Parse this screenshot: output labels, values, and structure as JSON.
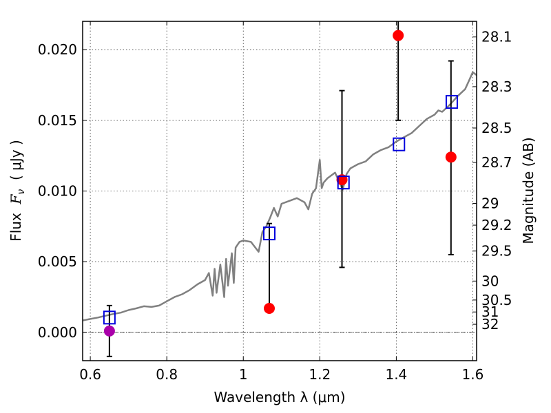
{
  "chart_data": {
    "type": "scatter",
    "xlabel": "Wavelength  λ (μm)",
    "ylabel": "Flux  F_ν  ( μJy )",
    "ylabel_parts": {
      "prefix": "Flux  ",
      "symbol": "F",
      "subscript": "ν",
      "unit": "  ( μJy )"
    },
    "ylabel_right": "Magnitude (AB)",
    "xlim": [
      0.58,
      1.61
    ],
    "ylim": [
      -0.002,
      0.022
    ],
    "grid": true,
    "x_ticks": [
      {
        "value": 0.6,
        "label": "0.6"
      },
      {
        "value": 0.8,
        "label": "0.8"
      },
      {
        "value": 1.0,
        "label": "1"
      },
      {
        "value": 1.2,
        "label": "1.2"
      },
      {
        "value": 1.4,
        "label": "1.4"
      },
      {
        "value": 1.6,
        "label": "1.6"
      }
    ],
    "y_ticks": [
      {
        "value": 0.0,
        "label": "0.000"
      },
      {
        "value": 0.005,
        "label": "0.005"
      },
      {
        "value": 0.01,
        "label": "0.010"
      },
      {
        "value": 0.015,
        "label": "0.015"
      },
      {
        "value": 0.02,
        "label": "0.020"
      }
    ],
    "right_ticks": [
      {
        "label": "28.1",
        "mag": 28.1
      },
      {
        "label": "28.3",
        "mag": 28.3
      },
      {
        "label": "28.5",
        "mag": 28.5
      },
      {
        "label": "28.7",
        "mag": 28.7
      },
      {
        "label": "29",
        "mag": 29.0
      },
      {
        "label": "29.2",
        "mag": 29.2
      },
      {
        "label": "29.5",
        "mag": 29.5
      },
      {
        "label": "30",
        "mag": 30.0
      },
      {
        "label": "30.5",
        "mag": 30.5
      },
      {
        "label": "31",
        "mag": 31.0
      },
      {
        "label": "32",
        "mag": 32.0
      }
    ],
    "series": [
      {
        "kind": "line",
        "color": "#808080",
        "x": [
          0.58,
          0.6,
          0.62,
          0.64,
          0.66,
          0.68,
          0.7,
          0.72,
          0.74,
          0.76,
          0.78,
          0.8,
          0.82,
          0.84,
          0.86,
          0.88,
          0.9,
          0.91,
          0.92,
          0.925,
          0.93,
          0.94,
          0.95,
          0.955,
          0.96,
          0.97,
          0.975,
          0.98,
          0.99,
          1.0,
          1.02,
          1.04,
          1.05,
          1.06,
          1.07,
          1.08,
          1.09,
          1.1,
          1.12,
          1.14,
          1.16,
          1.17,
          1.18,
          1.19,
          1.2,
          1.205,
          1.21,
          1.22,
          1.24,
          1.26,
          1.27,
          1.28,
          1.3,
          1.32,
          1.34,
          1.36,
          1.38,
          1.4,
          1.42,
          1.44,
          1.46,
          1.48,
          1.5,
          1.51,
          1.52,
          1.54,
          1.56,
          1.58,
          1.59,
          1.6,
          1.61
        ],
        "y": [
          0.00085,
          0.00095,
          0.00105,
          0.00118,
          0.0013,
          0.0014,
          0.00158,
          0.0017,
          0.00185,
          0.0018,
          0.0019,
          0.0022,
          0.0025,
          0.0027,
          0.003,
          0.0034,
          0.0037,
          0.0042,
          0.0026,
          0.0045,
          0.0028,
          0.0048,
          0.0025,
          0.0052,
          0.0033,
          0.0056,
          0.0035,
          0.006,
          0.0064,
          0.0065,
          0.0064,
          0.0057,
          0.0071,
          0.0075,
          0.0081,
          0.0088,
          0.0082,
          0.0091,
          0.0093,
          0.0095,
          0.0092,
          0.0087,
          0.0098,
          0.0102,
          0.0122,
          0.0102,
          0.0106,
          0.0109,
          0.0113,
          0.0101,
          0.0112,
          0.0116,
          0.0119,
          0.0121,
          0.0126,
          0.0129,
          0.0131,
          0.0135,
          0.0138,
          0.0141,
          0.0146,
          0.0151,
          0.0154,
          0.0157,
          0.0156,
          0.0161,
          0.0167,
          0.0172,
          0.0178,
          0.0184,
          0.0182
        ]
      },
      {
        "kind": "errorbar-points",
        "color": "#ff0000",
        "x": [
          1.068,
          1.258,
          1.405,
          1.543
        ],
        "y": [
          0.0017,
          0.0108,
          0.021,
          0.0124
        ],
        "yerr_low": [
          0.0017,
          0.0046,
          0.015,
          0.0055
        ],
        "yerr_high": [
          0.0077,
          0.0171,
          0.0225,
          0.0192
        ]
      },
      {
        "kind": "errorbar-points",
        "color": "#aa00aa",
        "x": [
          0.65
        ],
        "y": [
          0.0001
        ],
        "yerr_low": [
          -0.0017
        ],
        "yerr_high": [
          0.0019
        ]
      },
      {
        "kind": "open-squares",
        "color": "#0000dd",
        "x": [
          0.65,
          1.068,
          1.262,
          1.407,
          1.545
        ],
        "y": [
          0.00105,
          0.007,
          0.0106,
          0.0133,
          0.0163
        ]
      }
    ]
  }
}
